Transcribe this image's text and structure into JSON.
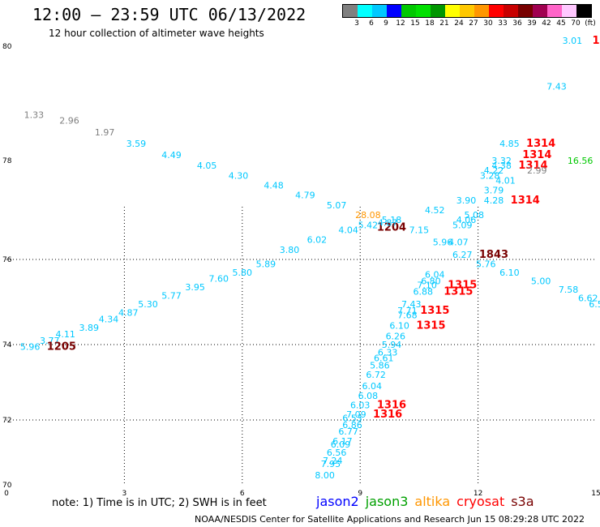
{
  "header": {
    "title": "12:00 – 23:59 UTC 06/13/2022",
    "subtitle": "12 hour collection of altimeter wave heights"
  },
  "colorbar": {
    "colors": [
      "#808080",
      "#00ffff",
      "#00c8ff",
      "#0000ff",
      "#00c800",
      "#00e000",
      "#009600",
      "#ffff00",
      "#ffc800",
      "#ff9600",
      "#ff0000",
      "#c80000",
      "#780000",
      "#a00050",
      "#ff64c8",
      "#ffc8ff",
      "#000000"
    ],
    "labels": [
      "3",
      "6",
      "9",
      "12",
      "15",
      "18",
      "21",
      "24",
      "27",
      "30",
      "33",
      "36",
      "39",
      "42",
      "45",
      "70",
      "(ft)"
    ]
  },
  "footer": {
    "note": "note:  1) Time is in UTC;  2) SWH is in feet",
    "satellites": [
      {
        "name": "jason2",
        "color": "#0000ff"
      },
      {
        "name": "jason3",
        "color": "#00a000"
      },
      {
        "name": "altika",
        "color": "#ff9600"
      },
      {
        "name": "cryosat",
        "color": "#ff0000"
      },
      {
        "name": "s3a",
        "color": "#780000"
      }
    ],
    "credit": "NOAA/NESDIS Center for Satellite Applications and Research    Jun 15 08:29:28 UTC 2022"
  },
  "chart_data": {
    "type": "scatter",
    "xticks": [
      "0",
      "3",
      "6",
      "9",
      "12",
      "15"
    ],
    "yticks": [
      "70",
      "72",
      "74",
      "76",
      "78",
      "80"
    ],
    "grid": true,
    "points": [
      {
        "label": "1.33",
        "lon": 0.7,
        "lat": 78.8,
        "color": "#808080"
      },
      {
        "label": "2.96",
        "lon": 1.6,
        "lat": 78.7,
        "color": "#808080"
      },
      {
        "label": "1.97",
        "lon": 2.5,
        "lat": 78.5,
        "color": "#808080"
      },
      {
        "label": "3.59",
        "lon": 3.3,
        "lat": 78.3,
        "color": "#00c8ff"
      },
      {
        "label": "4.49",
        "lon": 4.2,
        "lat": 78.1,
        "color": "#00c8ff"
      },
      {
        "label": "4.05",
        "lon": 5.1,
        "lat": 77.9,
        "color": "#00c8ff"
      },
      {
        "label": "4.30",
        "lon": 5.9,
        "lat": 77.7,
        "color": "#00c8ff"
      },
      {
        "label": "4.48",
        "lon": 6.8,
        "lat": 77.5,
        "color": "#00c8ff"
      },
      {
        "label": "4.79",
        "lon": 7.6,
        "lat": 77.3,
        "color": "#00c8ff"
      },
      {
        "label": "5.07",
        "lon": 8.4,
        "lat": 77.1,
        "color": "#00c8ff"
      },
      {
        "label": "28.08",
        "lon": 9.2,
        "lat": 76.9,
        "color": "#ff9600"
      },
      {
        "label": "5.18",
        "lon": 9.8,
        "lat": 76.8,
        "color": "#00c8ff"
      },
      {
        "label": "5.42",
        "lon": 9.2,
        "lat": 76.7,
        "color": "#00c8ff"
      },
      {
        "label": "4.52",
        "lon": 10.9,
        "lat": 77.0,
        "color": "#00c8ff"
      },
      {
        "label": "3.90",
        "lon": 11.7,
        "lat": 77.2,
        "color": "#00c8ff"
      },
      {
        "label": "3.79",
        "lon": 12.4,
        "lat": 77.4,
        "color": "#00c8ff"
      },
      {
        "label": "4.28",
        "lon": 12.4,
        "lat": 77.2,
        "color": "#00c8ff"
      },
      {
        "label": "1314",
        "lon": 13.2,
        "lat": 77.2,
        "color": "#ff0000"
      },
      {
        "label": "4.85",
        "lon": 12.8,
        "lat": 78.3,
        "color": "#00c8ff"
      },
      {
        "label": "1314",
        "lon": 13.6,
        "lat": 78.3,
        "color": "#ff0000"
      },
      {
        "label": "3.32",
        "lon": 12.6,
        "lat": 78.0,
        "color": "#00c8ff"
      },
      {
        "label": "1314",
        "lon": 13.5,
        "lat": 78.1,
        "color": "#ff0000"
      },
      {
        "label": "4.38",
        "lon": 12.6,
        "lat": 77.9,
        "color": "#00c8ff"
      },
      {
        "label": "1314",
        "lon": 13.4,
        "lat": 77.9,
        "color": "#ff0000"
      },
      {
        "label": "4.22",
        "lon": 12.4,
        "lat": 77.8,
        "color": "#00c8ff"
      },
      {
        "label": "3.28",
        "lon": 12.3,
        "lat": 77.7,
        "color": "#00c8ff"
      },
      {
        "label": "2.99",
        "lon": 13.5,
        "lat": 77.8,
        "color": "#808080"
      },
      {
        "label": "4.01",
        "lon": 12.7,
        "lat": 77.6,
        "color": "#00c8ff"
      },
      {
        "label": "16.56",
        "lon": 14.6,
        "lat": 78.0,
        "color": "#00c800"
      },
      {
        "label": "3.01",
        "lon": 14.4,
        "lat": 80.1,
        "color": "#00c8ff"
      },
      {
        "label": "7.43",
        "lon": 14.0,
        "lat": 79.3,
        "color": "#00c8ff"
      },
      {
        "label": "1",
        "lon": 15.0,
        "lat": 80.1,
        "color": "#ff0000"
      },
      {
        "label": "1204",
        "lon": 9.8,
        "lat": 76.65,
        "color": "#780000"
      },
      {
        "label": "4.04",
        "lon": 8.7,
        "lat": 76.6,
        "color": "#00c8ff"
      },
      {
        "label": "4.87",
        "lon": 9.7,
        "lat": 76.75,
        "color": "#00c8ff"
      },
      {
        "label": "7.15",
        "lon": 10.5,
        "lat": 76.6,
        "color": "#00c8ff"
      },
      {
        "label": "5.08",
        "lon": 11.9,
        "lat": 76.9,
        "color": "#00c8ff"
      },
      {
        "label": "4.06",
        "lon": 11.7,
        "lat": 76.8,
        "color": "#00c8ff"
      },
      {
        "label": "5.09",
        "lon": 11.6,
        "lat": 76.7,
        "color": "#00c8ff"
      },
      {
        "label": "5.96",
        "lon": 11.1,
        "lat": 76.35,
        "color": "#00c8ff"
      },
      {
        "label": "4.07",
        "lon": 11.5,
        "lat": 76.35,
        "color": "#00c8ff"
      },
      {
        "label": "6.27",
        "lon": 11.6,
        "lat": 76.1,
        "color": "#00c8ff"
      },
      {
        "label": "1843",
        "lon": 12.4,
        "lat": 76.1,
        "color": "#780000"
      },
      {
        "label": "5.76",
        "lon": 12.2,
        "lat": 75.9,
        "color": "#00c8ff"
      },
      {
        "label": "6.10",
        "lon": 12.8,
        "lat": 75.7,
        "color": "#00c8ff"
      },
      {
        "label": "5.00",
        "lon": 13.6,
        "lat": 75.5,
        "color": "#00c8ff"
      },
      {
        "label": "7.58",
        "lon": 14.3,
        "lat": 75.3,
        "color": "#00c8ff"
      },
      {
        "label": "6.62",
        "lon": 14.8,
        "lat": 75.1,
        "color": "#00c8ff"
      },
      {
        "label": "6.5",
        "lon": 15.0,
        "lat": 74.95,
        "color": "#00c8ff"
      },
      {
        "label": "6.02",
        "lon": 7.9,
        "lat": 76.4,
        "color": "#00c8ff"
      },
      {
        "label": "3.80",
        "lon": 7.2,
        "lat": 76.2,
        "color": "#00c8ff"
      },
      {
        "label": "5.89",
        "lon": 6.6,
        "lat": 75.9,
        "color": "#00c8ff"
      },
      {
        "label": "5.80",
        "lon": 6.0,
        "lat": 75.7,
        "color": "#00c8ff"
      },
      {
        "label": "7.60",
        "lon": 5.4,
        "lat": 75.55,
        "color": "#00c8ff"
      },
      {
        "label": "3.95",
        "lon": 4.8,
        "lat": 75.35,
        "color": "#00c8ff"
      },
      {
        "label": "5.77",
        "lon": 4.2,
        "lat": 75.15,
        "color": "#00c8ff"
      },
      {
        "label": "5.30",
        "lon": 3.6,
        "lat": 74.95,
        "color": "#00c8ff"
      },
      {
        "label": "4.87",
        "lon": 3.1,
        "lat": 74.75,
        "color": "#00c8ff"
      },
      {
        "label": "4.34",
        "lon": 2.6,
        "lat": 74.6,
        "color": "#00c8ff"
      },
      {
        "label": "3.89",
        "lon": 2.1,
        "lat": 74.4,
        "color": "#00c8ff"
      },
      {
        "label": "4.11",
        "lon": 1.5,
        "lat": 74.25,
        "color": "#00c8ff"
      },
      {
        "label": "3.77",
        "lon": 1.1,
        "lat": 74.1,
        "color": "#00c8ff"
      },
      {
        "label": "5.96",
        "lon": 0.6,
        "lat": 73.95,
        "color": "#00c8ff"
      },
      {
        "label": "1205",
        "lon": 1.4,
        "lat": 73.95,
        "color": "#780000"
      },
      {
        "label": "6.04",
        "lon": 10.9,
        "lat": 75.65,
        "color": "#00c8ff"
      },
      {
        "label": "6.80",
        "lon": 10.8,
        "lat": 75.5,
        "color": "#00c8ff"
      },
      {
        "label": "7.10",
        "lon": 10.7,
        "lat": 75.4,
        "color": "#00c8ff"
      },
      {
        "label": "6.88",
        "lon": 10.6,
        "lat": 75.25,
        "color": "#00c8ff"
      },
      {
        "label": "1315",
        "lon": 11.6,
        "lat": 75.4,
        "color": "#ff0000"
      },
      {
        "label": "1315",
        "lon": 11.5,
        "lat": 75.25,
        "color": "#ff0000"
      },
      {
        "label": "7.43",
        "lon": 10.3,
        "lat": 74.95,
        "color": "#00c8ff"
      },
      {
        "label": "7.71",
        "lon": 10.2,
        "lat": 74.8,
        "color": "#00c8ff"
      },
      {
        "label": "7.68",
        "lon": 10.2,
        "lat": 74.7,
        "color": "#00c8ff"
      },
      {
        "label": "1315",
        "lon": 10.9,
        "lat": 74.8,
        "color": "#ff0000"
      },
      {
        "label": "6.10",
        "lon": 10.0,
        "lat": 74.45,
        "color": "#00c8ff"
      },
      {
        "label": "1315",
        "lon": 10.8,
        "lat": 74.45,
        "color": "#ff0000"
      },
      {
        "label": "6.26",
        "lon": 9.9,
        "lat": 74.2,
        "color": "#00c8ff"
      },
      {
        "label": "5.94",
        "lon": 9.8,
        "lat": 74.0,
        "color": "#00c8ff"
      },
      {
        "label": "6.33",
        "lon": 9.7,
        "lat": 73.8,
        "color": "#00c8ff"
      },
      {
        "label": "6.61",
        "lon": 9.6,
        "lat": 73.65,
        "color": "#00c8ff"
      },
      {
        "label": "5.86",
        "lon": 9.5,
        "lat": 73.45,
        "color": "#00c8ff"
      },
      {
        "label": "6.72",
        "lon": 9.4,
        "lat": 73.2,
        "color": "#00c8ff"
      },
      {
        "label": "6.04",
        "lon": 9.3,
        "lat": 72.9,
        "color": "#00c8ff"
      },
      {
        "label": "6.08",
        "lon": 9.2,
        "lat": 72.65,
        "color": "#00c8ff"
      },
      {
        "label": "6.03",
        "lon": 9.0,
        "lat": 72.4,
        "color": "#00c8ff"
      },
      {
        "label": "1316",
        "lon": 9.8,
        "lat": 72.4,
        "color": "#ff0000"
      },
      {
        "label": "7.09",
        "lon": 8.9,
        "lat": 72.15,
        "color": "#00c8ff"
      },
      {
        "label": "1316",
        "lon": 9.7,
        "lat": 72.15,
        "color": "#ff0000"
      },
      {
        "label": "6.53",
        "lon": 8.8,
        "lat": 72.05,
        "color": "#00c8ff"
      },
      {
        "label": "6.86",
        "lon": 8.8,
        "lat": 71.85,
        "color": "#00c8ff"
      },
      {
        "label": "6.77",
        "lon": 8.7,
        "lat": 71.65,
        "color": "#00c8ff"
      },
      {
        "label": "6.17",
        "lon": 8.55,
        "lat": 71.35,
        "color": "#00c8ff"
      },
      {
        "label": "6.09",
        "lon": 8.5,
        "lat": 71.25,
        "color": "#00c8ff"
      },
      {
        "label": "6.56",
        "lon": 8.4,
        "lat": 71.0,
        "color": "#00c8ff"
      },
      {
        "label": "7.24",
        "lon": 8.3,
        "lat": 70.75,
        "color": "#00c8ff"
      },
      {
        "label": "7.95",
        "lon": 8.25,
        "lat": 70.65,
        "color": "#00c8ff"
      },
      {
        "label": "8.00",
        "lon": 8.1,
        "lat": 70.3,
        "color": "#00c8ff"
      }
    ]
  }
}
